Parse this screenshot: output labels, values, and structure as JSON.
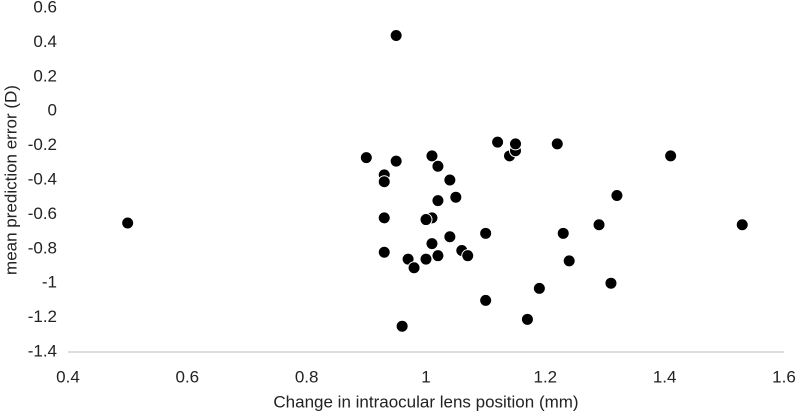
{
  "chart_data": {
    "type": "scatter",
    "x_label": "Change in intraocular lens position (mm)",
    "y_label": "mean prediction  error (D)",
    "color": "#000000",
    "x": [
      0.5,
      0.95,
      0.9,
      0.95,
      0.93,
      0.93,
      1.01,
      1.02,
      1.04,
      1.05,
      1.02,
      0.93,
      1.01,
      1.0,
      1.01,
      1.04,
      1.06,
      1.07,
      1.02,
      1.0,
      0.97,
      0.93,
      0.98,
      1.1,
      1.12,
      1.14,
      1.15,
      1.15,
      1.22,
      1.41,
      1.32,
      1.23,
      1.29,
      1.24,
      1.53,
      1.31,
      1.1,
      1.19,
      1.17,
      0.96
    ],
    "values": [
      -0.65,
      0.44,
      -0.27,
      -0.29,
      -0.37,
      -0.41,
      -0.26,
      -0.32,
      -0.4,
      -0.5,
      -0.52,
      -0.62,
      -0.62,
      -0.63,
      -0.77,
      -0.73,
      -0.81,
      -0.84,
      -0.84,
      -0.86,
      -0.86,
      -0.82,
      -0.91,
      -0.71,
      -0.18,
      -0.26,
      -0.23,
      -0.19,
      -0.19,
      -0.26,
      -0.49,
      -0.71,
      -0.66,
      -0.87,
      -0.66,
      -1.0,
      -1.1,
      -1.03,
      -1.21,
      -1.25
    ],
    "xlim": [
      0.4,
      1.6
    ],
    "xticks": [
      0.4,
      0.6,
      0.8,
      1,
      1.2,
      1.4,
      1.6
    ],
    "ylim": [
      -1.4,
      0.6
    ],
    "yticks": [
      0.6,
      0.4,
      0.2,
      0,
      -0.2,
      -0.4,
      -0.6,
      -0.8,
      -1,
      -1.2,
      -1.4
    ]
  }
}
